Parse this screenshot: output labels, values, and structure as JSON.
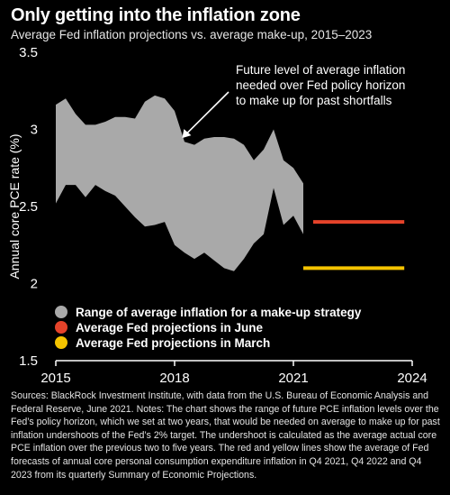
{
  "title": "Only getting into the inflation zone",
  "subtitle": "Average Fed inflation projections vs. average make-up, 2015–2023",
  "notes": "Sources: BlackRock Investment Institute, with data from the U.S. Bureau of Economic Analysis and Federal Reserve, June 2021.  Notes: The chart shows the range of  future PCE inflation levels over the Fed’s policy horizon, which we set at two years, that would be needed on average to make up for past inflation undershoots of the Fed’s 2% target. The undershoot is calculated as the average actual core PCE inflation over the previous two to five years. The red and yellow lines show the average of Fed forecasts of annual core personal consumption expenditure inflation in Q4 2021, Q4 2022 and Q4 2023 from its quarterly Summary of Economic Projections.",
  "colors": {
    "background": "#000000",
    "range_fill": "#a9a9a9",
    "june": "#e5432a",
    "march": "#f5c400",
    "text": "#ffffff"
  },
  "chart_data": {
    "type": "area",
    "ylabel": "Annual core PCE rate (%)",
    "xlabel": "",
    "xlim": [
      2015,
      2024
    ],
    "ylim": [
      1.5,
      3.5
    ],
    "x_ticks": [
      2015,
      2018,
      2021,
      2024
    ],
    "x_tick_labels": [
      "2015",
      "2018",
      "2021",
      "2024"
    ],
    "y_ticks": [
      1.5,
      2,
      2.5,
      3,
      3.5
    ],
    "y_tick_labels": [
      "1.5",
      "2",
      "2.5",
      "3",
      "3.5"
    ],
    "grid": false,
    "legend_position": "bottom-left",
    "annotation": {
      "text_lines": [
        "Future level of average inflation",
        "needed over Fed policy horizon",
        "to make up for past shortfalls"
      ],
      "arrow_to": [
        2018.1,
        2.92
      ]
    },
    "series": [
      {
        "name": "Range of average inflation for a make-up strategy",
        "kind": "band",
        "color": "#a9a9a9",
        "x": [
          2015.0,
          2015.25,
          2015.5,
          2015.75,
          2016.0,
          2016.25,
          2016.5,
          2016.75,
          2017.0,
          2017.25,
          2017.5,
          2017.75,
          2018.0,
          2018.25,
          2018.5,
          2018.75,
          2019.0,
          2019.25,
          2019.5,
          2019.75,
          2020.0,
          2020.25,
          2020.5,
          2020.75,
          2021.0,
          2021.25
        ],
        "upper": [
          3.16,
          3.2,
          3.1,
          3.03,
          3.03,
          3.05,
          3.08,
          3.08,
          3.07,
          3.18,
          3.22,
          3.2,
          3.12,
          2.92,
          2.9,
          2.94,
          2.95,
          2.95,
          2.94,
          2.9,
          2.8,
          2.87,
          3.0,
          2.8,
          2.75,
          2.65
        ],
        "lower": [
          2.52,
          2.64,
          2.64,
          2.56,
          2.64,
          2.6,
          2.57,
          2.5,
          2.43,
          2.37,
          2.38,
          2.4,
          2.25,
          2.2,
          2.16,
          2.2,
          2.15,
          2.1,
          2.08,
          2.16,
          2.26,
          2.32,
          2.62,
          2.38,
          2.44,
          2.32
        ]
      },
      {
        "name": "Average Fed projections in June",
        "kind": "line",
        "color": "#e5432a",
        "x": [
          2021.5,
          2023.8
        ],
        "y": [
          2.4,
          2.4
        ]
      },
      {
        "name": "Average Fed projections in March",
        "kind": "line",
        "color": "#f5c400",
        "x": [
          2021.25,
          2023.8
        ],
        "y": [
          2.1,
          2.1
        ]
      }
    ]
  }
}
